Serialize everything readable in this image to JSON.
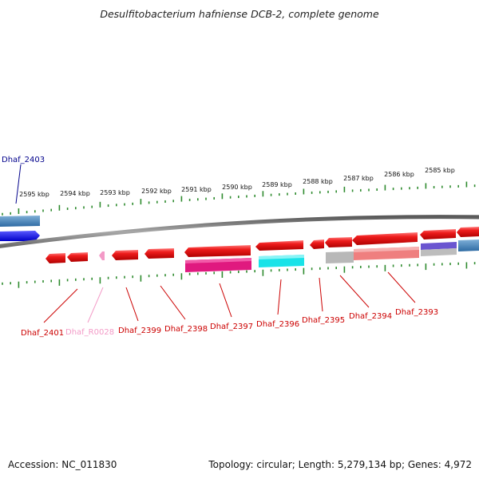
{
  "title": "Desulfitobacterium hafniense DCB-2, complete genome",
  "footer": {
    "accession": "Accession: NC_011830",
    "summary": "Topology: circular; Length: 5,279,134 bp; Genes: 4,972"
  },
  "colors": {
    "backbone": "#8a8a8a",
    "tick": "#2e8b2e",
    "gene_forward": "#e8141a",
    "gene_forward_highlight": "#ff8080",
    "label_default": "#cc0000",
    "label_rna": "#f39ac7",
    "label_top": "#00008b",
    "blue_gene": "#1a1adf",
    "steelblue_gene": "#3d7db8",
    "magenta_track": "#e0197f",
    "cyan_track": "#19e3e8",
    "gray_track": "#b8b8b8",
    "salmon_track": "#ef7f7f",
    "purple_track": "#6a55d0"
  },
  "ticks": [
    {
      "label": "2595 kbp"
    },
    {
      "label": "2594 kbp"
    },
    {
      "label": "2593 kbp"
    },
    {
      "label": "2592 kbp"
    },
    {
      "label": "2591 kbp"
    },
    {
      "label": "2590 kbp"
    },
    {
      "label": "2589 kbp"
    },
    {
      "label": "2588 kbp"
    },
    {
      "label": "2587 kbp"
    },
    {
      "label": "2586 kbp"
    },
    {
      "label": "2585 kbp"
    }
  ],
  "gene_labels": {
    "top": "Dhaf_2403",
    "bottom": [
      {
        "name": "Dhaf_2401",
        "kind": "gene"
      },
      {
        "name": "Dhaf_R0028",
        "kind": "rna"
      },
      {
        "name": "Dhaf_2399",
        "kind": "gene"
      },
      {
        "name": "Dhaf_2398",
        "kind": "gene"
      },
      {
        "name": "Dhaf_2397",
        "kind": "gene"
      },
      {
        "name": "Dhaf_2396",
        "kind": "gene"
      },
      {
        "name": "Dhaf_2395",
        "kind": "gene"
      },
      {
        "name": "Dhaf_2394",
        "kind": "gene"
      },
      {
        "name": "Dhaf_2393",
        "kind": "gene"
      }
    ]
  }
}
